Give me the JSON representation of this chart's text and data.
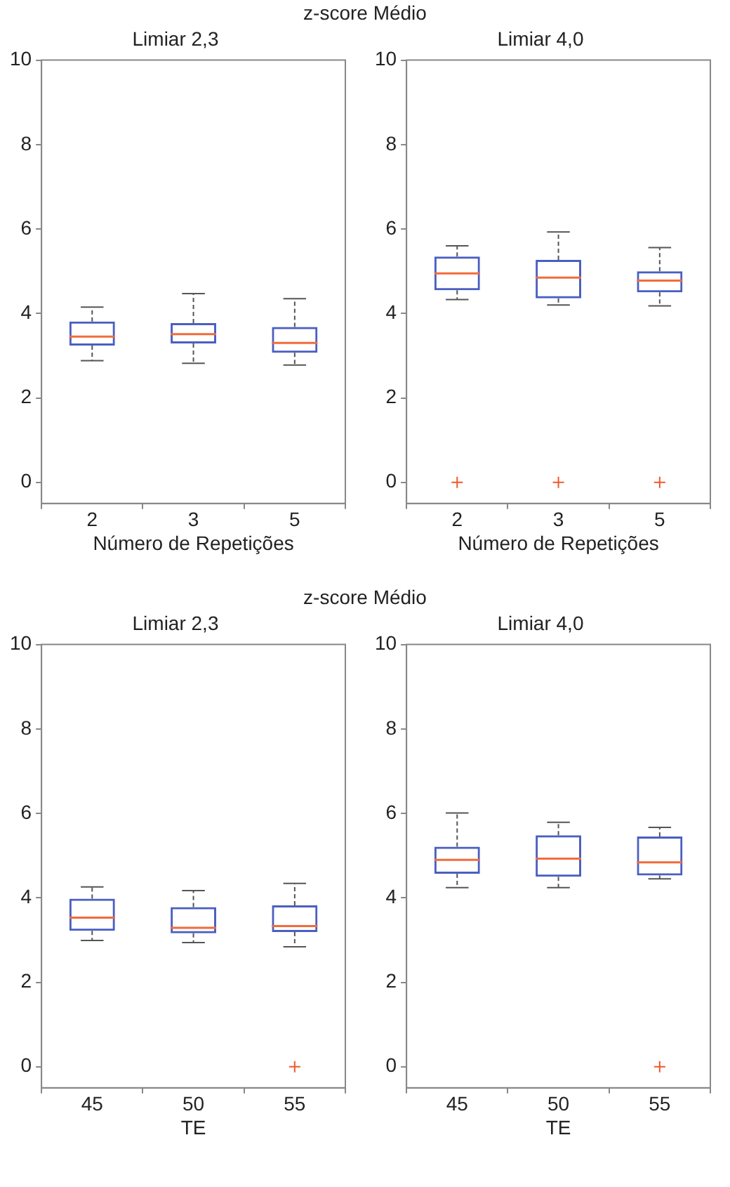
{
  "chart_data": [
    {
      "type": "box",
      "title": "z-score Médio",
      "subtitle": "Limiar 2,3",
      "xlabel": "Número de Repetições",
      "categories": [
        "2",
        "3",
        "5"
      ],
      "ylim": [
        -0.5,
        10
      ],
      "yticks": [
        0,
        2,
        4,
        6,
        8,
        10
      ],
      "grid": false,
      "series": [
        {
          "color": "#4a5fc1",
          "boxes": [
            {
              "low": 2.88,
              "q1": 3.24,
              "median": 3.45,
              "q3": 3.81,
              "high": 4.15
            },
            {
              "low": 2.82,
              "q1": 3.29,
              "median": 3.51,
              "q3": 3.77,
              "high": 4.47
            },
            {
              "low": 2.78,
              "q1": 3.07,
              "median": 3.3,
              "q3": 3.68,
              "high": 4.35
            }
          ]
        }
      ]
    },
    {
      "type": "box",
      "subtitle": "Limiar 4,0",
      "xlabel": "Número de Repetições",
      "categories": [
        "2",
        "3",
        "5"
      ],
      "ylim": [
        -0.5,
        10
      ],
      "yticks": [
        0,
        2,
        4,
        6,
        8,
        10
      ],
      "grid": false,
      "series": [
        {
          "color": "#4a5fc1",
          "boxes": [
            {
              "low": 4.33,
              "q1": 4.55,
              "median": 4.95,
              "q3": 5.35,
              "high": 5.6,
              "outliers": [
                0
              ]
            },
            {
              "low": 4.2,
              "q1": 4.36,
              "median": 4.85,
              "q3": 5.27,
              "high": 5.93,
              "outliers": [
                0
              ]
            },
            {
              "low": 4.18,
              "q1": 4.5,
              "median": 4.78,
              "q3": 5.0,
              "high": 5.56,
              "outliers": [
                0
              ]
            }
          ]
        }
      ]
    },
    {
      "type": "box",
      "title": "z-score Médio",
      "subtitle": "Limiar 2,3",
      "xlabel": "TE",
      "categories": [
        "45",
        "50",
        "55"
      ],
      "ylim": [
        -0.5,
        10
      ],
      "yticks": [
        0,
        2,
        4,
        6,
        8,
        10
      ],
      "grid": false,
      "series": [
        {
          "color": "#4a5fc1",
          "boxes": [
            {
              "low": 2.99,
              "q1": 3.22,
              "median": 3.53,
              "q3": 3.98,
              "high": 4.26
            },
            {
              "low": 2.94,
              "q1": 3.16,
              "median": 3.29,
              "q3": 3.78,
              "high": 4.17
            },
            {
              "low": 2.84,
              "q1": 3.19,
              "median": 3.33,
              "q3": 3.82,
              "high": 4.34,
              "outliers": [
                0
              ]
            }
          ]
        }
      ]
    },
    {
      "type": "box",
      "subtitle": "Limiar 4,0",
      "xlabel": "TE",
      "categories": [
        "45",
        "50",
        "55"
      ],
      "ylim": [
        -0.5,
        10
      ],
      "yticks": [
        0,
        2,
        4,
        6,
        8,
        10
      ],
      "grid": false,
      "series": [
        {
          "color": "#4a5fc1",
          "boxes": [
            {
              "low": 4.24,
              "q1": 4.57,
              "median": 4.9,
              "q3": 5.21,
              "high": 6.01
            },
            {
              "low": 4.24,
              "q1": 4.5,
              "median": 4.93,
              "q3": 5.48,
              "high": 5.79
            },
            {
              "low": 4.45,
              "q1": 4.53,
              "median": 4.84,
              "q3": 5.45,
              "high": 5.67,
              "outliers": [
                0
              ]
            }
          ]
        }
      ]
    }
  ]
}
